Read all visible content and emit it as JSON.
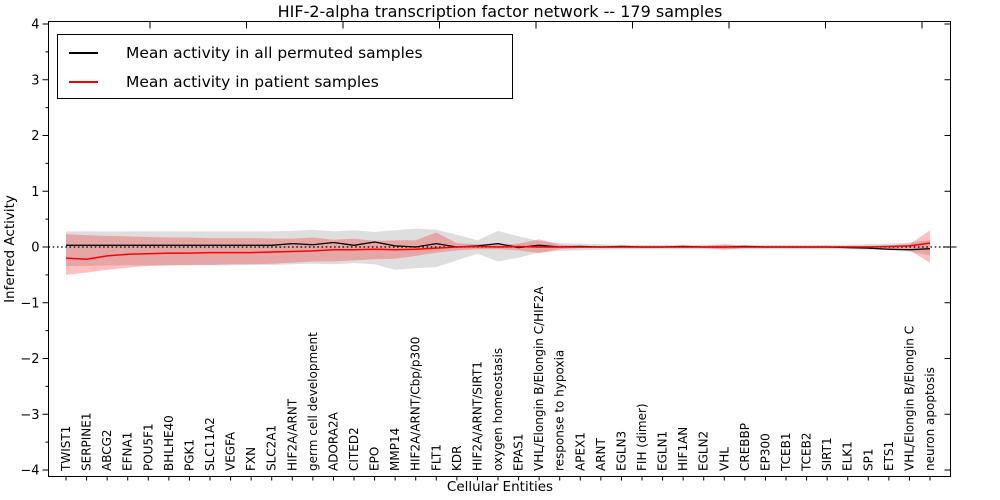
{
  "figure": {
    "title": "HIF-2-alpha transcription factor network -- 179 samples",
    "xlabel": "Cellular Entities",
    "ylabel": "Inferred Activity"
  },
  "legend": {
    "entries": [
      {
        "label": "Mean activity in all permuted samples",
        "color": "#000000"
      },
      {
        "label": "Mean activity in patient samples",
        "color": "#ff0000"
      }
    ]
  },
  "chart_data": {
    "type": "line",
    "title": "HIF-2-alpha transcription factor network -- 179 samples",
    "xlabel": "Cellular Entities",
    "ylabel": "Inferred Activity",
    "ylim": [
      -4,
      4
    ],
    "yticks": [
      4,
      3,
      2,
      1,
      0,
      -1,
      -2,
      -3,
      -4
    ],
    "ytick_labels": [
      "4",
      "3",
      "2",
      "1",
      "0",
      "−1",
      "−2",
      "−3",
      "−4"
    ],
    "grid": false,
    "legend_position": "upper left",
    "zero_line": {
      "y": 0,
      "style": "dotted",
      "color": "#000000"
    },
    "categories": [
      "TWIST1",
      "SERPINE1",
      "ABCG2",
      "EFNA1",
      "POU5F1",
      "BHLHE40",
      "PGK1",
      "SLC11A2",
      "VEGFA",
      "FXN",
      "SLC2A1",
      "HIF2A/ARNT",
      "germ cell development",
      "ADORA2A",
      "CITED2",
      "EPO",
      "MMP14",
      "HIF2A/ARNT/Cbp/p300",
      "FLT1",
      "KDR",
      "HIF2A/ARNT/SIRT1",
      "oxygen homeostasis",
      "EPAS1",
      "VHL/Elongin B/Elongin C/HIF2A",
      "response to hypoxia",
      "APEX1",
      "ARNT",
      "EGLN3",
      "FIH (dimer)",
      "EGLN1",
      "HIF1AN",
      "EGLN2",
      "VHL",
      "CREBBP",
      "EP300",
      "TCEB1",
      "TCEB2",
      "SIRT1",
      "ELK1",
      "SP1",
      "ETS1",
      "VHL/Elongin B/Elongin C",
      "neuron apoptosis"
    ],
    "series": [
      {
        "name": "Mean activity in all permuted samples",
        "color": "#000000",
        "band_color": "rgba(0,0,0,0.13)",
        "values": [
          0.03,
          0.03,
          0.03,
          0.03,
          0.03,
          0.03,
          0.03,
          0.03,
          0.03,
          0.03,
          0.03,
          0.06,
          0.04,
          0.08,
          0.03,
          0.09,
          0.02,
          0.0,
          0.06,
          0.0,
          0.02,
          0.06,
          -0.01,
          0.03,
          0.0,
          0.01,
          0.0,
          0.01,
          0.0,
          0.0,
          0.01,
          0.0,
          0.0,
          0.01,
          0.0,
          0.0,
          0.0,
          0.0,
          -0.01,
          -0.02,
          -0.04,
          -0.05,
          -0.03
        ],
        "band_upper": [
          0.28,
          0.28,
          0.28,
          0.28,
          0.28,
          0.28,
          0.28,
          0.28,
          0.28,
          0.28,
          0.28,
          0.29,
          0.31,
          0.28,
          0.3,
          0.27,
          0.3,
          0.33,
          0.31,
          0.22,
          0.12,
          0.29,
          0.19,
          0.11,
          0.07,
          0.06,
          0.05,
          0.04,
          0.04,
          0.04,
          0.04,
          0.04,
          0.04,
          0.04,
          0.04,
          0.04,
          0.04,
          0.04,
          0.04,
          0.05,
          0.06,
          0.08,
          0.12
        ],
        "band_lower": [
          -0.34,
          -0.34,
          -0.33,
          -0.33,
          -0.33,
          -0.33,
          -0.33,
          -0.33,
          -0.33,
          -0.32,
          -0.32,
          -0.31,
          -0.3,
          -0.31,
          -0.29,
          -0.31,
          -0.41,
          -0.38,
          -0.36,
          -0.24,
          -0.12,
          -0.26,
          -0.19,
          -0.1,
          -0.07,
          -0.06,
          -0.05,
          -0.04,
          -0.04,
          -0.04,
          -0.04,
          -0.04,
          -0.04,
          -0.04,
          -0.04,
          -0.04,
          -0.04,
          -0.04,
          -0.04,
          -0.05,
          -0.06,
          -0.08,
          -0.15
        ]
      },
      {
        "name": "Mean activity in patient samples",
        "color": "#ff0000",
        "band_color": "rgba(255,0,0,0.25)",
        "values": [
          -0.2,
          -0.22,
          -0.16,
          -0.13,
          -0.12,
          -0.11,
          -0.11,
          -0.1,
          -0.1,
          -0.1,
          -0.09,
          -0.08,
          -0.07,
          -0.05,
          -0.05,
          -0.04,
          -0.05,
          -0.04,
          -0.02,
          0.0,
          0.01,
          0.0,
          0.01,
          0.0,
          0.0,
          0.0,
          0.0,
          0.0,
          0.0,
          0.0,
          0.0,
          0.0,
          0.0,
          0.0,
          0.0,
          0.0,
          0.0,
          0.0,
          0.0,
          0.0,
          0.01,
          0.02,
          0.07
        ],
        "band_upper": [
          0.23,
          0.21,
          0.2,
          0.19,
          0.18,
          0.17,
          0.17,
          0.16,
          0.16,
          0.16,
          0.15,
          0.15,
          0.17,
          0.13,
          0.15,
          0.11,
          0.12,
          0.12,
          0.26,
          0.07,
          0.05,
          0.04,
          0.06,
          0.14,
          0.04,
          0.02,
          0.02,
          0.02,
          0.02,
          0.02,
          0.02,
          0.02,
          0.05,
          0.02,
          0.02,
          0.02,
          0.02,
          0.02,
          0.02,
          0.02,
          0.03,
          0.05,
          0.3
        ],
        "band_lower": [
          -0.5,
          -0.46,
          -0.41,
          -0.37,
          -0.34,
          -0.33,
          -0.32,
          -0.32,
          -0.31,
          -0.31,
          -0.3,
          -0.28,
          -0.26,
          -0.26,
          -0.24,
          -0.22,
          -0.21,
          -0.16,
          -0.1,
          -0.06,
          -0.04,
          -0.04,
          -0.06,
          -0.11,
          -0.04,
          -0.02,
          -0.02,
          -0.02,
          -0.02,
          -0.02,
          -0.02,
          -0.02,
          -0.05,
          -0.02,
          -0.02,
          -0.02,
          -0.02,
          -0.02,
          -0.02,
          -0.02,
          -0.03,
          -0.06,
          -0.28
        ]
      }
    ]
  }
}
